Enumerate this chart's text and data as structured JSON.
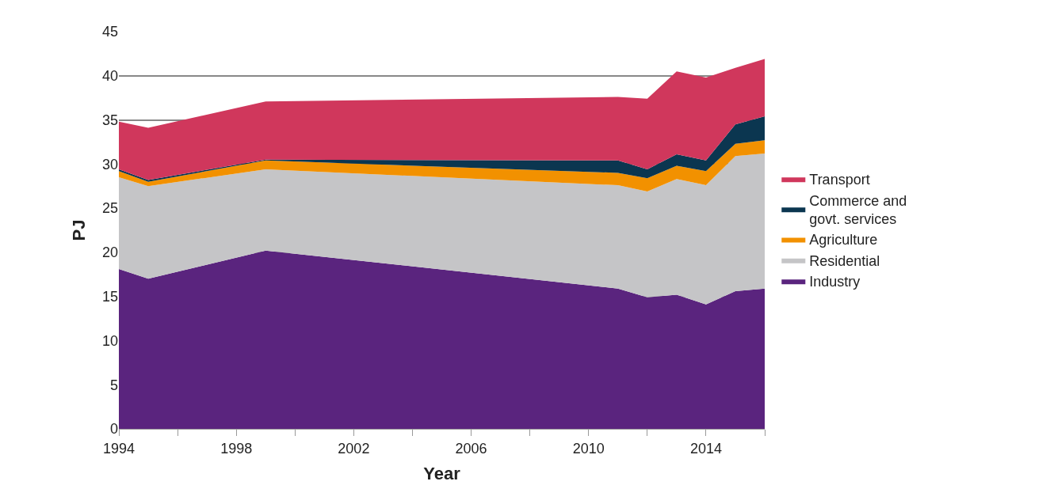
{
  "chart_data": {
    "type": "area",
    "stacked": true,
    "xlabel": "Year",
    "ylabel": "PJ",
    "x": [
      1994,
      1995,
      1999,
      2011,
      2012,
      2013,
      2014,
      2015,
      2016
    ],
    "series": [
      {
        "name": "Industry",
        "color": "#5a247e",
        "values": [
          18.1,
          17.0,
          20.2,
          15.9,
          14.9,
          15.2,
          14.1,
          15.6,
          15.9
        ]
      },
      {
        "name": "Residential",
        "color": "#c5c5c7",
        "values": [
          10.4,
          10.5,
          9.2,
          11.7,
          12.0,
          13.1,
          13.5,
          15.3,
          15.3
        ]
      },
      {
        "name": "Agriculture",
        "color": "#f29100",
        "values": [
          0.7,
          0.5,
          1.0,
          1.4,
          1.5,
          1.5,
          1.6,
          1.4,
          1.5
        ]
      },
      {
        "name": "Commerce and govt. services",
        "color": "#0b3650",
        "values": [
          0.2,
          0.2,
          0.1,
          1.4,
          1.0,
          1.3,
          1.2,
          2.2,
          2.7
        ]
      },
      {
        "name": "Transport",
        "color": "#d0375c",
        "values": [
          5.4,
          5.9,
          6.6,
          7.2,
          8.0,
          9.4,
          9.4,
          6.4,
          6.5
        ]
      }
    ],
    "xlim": [
      1994,
      2016
    ],
    "xticks": [
      1994,
      {
        "value": 1996,
        "label": null
      },
      1998,
      {
        "value": 2000,
        "label": null
      },
      2002,
      {
        "value": 2004,
        "label": null
      },
      2006,
      {
        "value": 2008,
        "label": null
      },
      2010,
      {
        "value": 2012,
        "label": null
      },
      2014,
      {
        "value": 2016,
        "label": null
      }
    ],
    "ylim": [
      0,
      45
    ],
    "yticks": [
      0,
      5,
      10,
      15,
      20,
      25,
      30,
      35,
      40,
      45
    ],
    "grid": "y",
    "legend": "right"
  }
}
